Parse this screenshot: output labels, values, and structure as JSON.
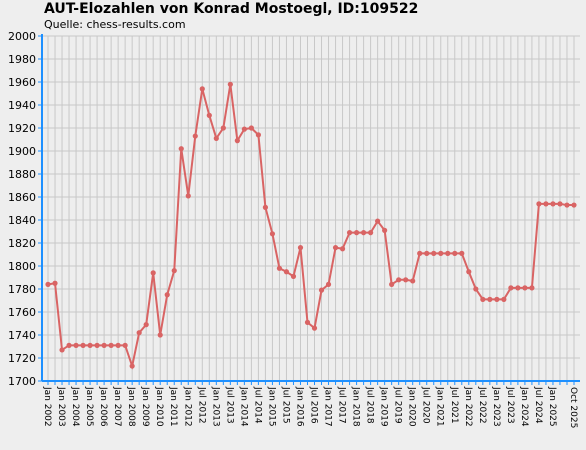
{
  "chart_data": {
    "type": "line",
    "title": "AUT-Elozahlen von Konrad Mostoegl, ID:109522",
    "subtitle": "Quelle: chess-results.com",
    "color": "#d96464",
    "grid": true,
    "ylim": [
      1700,
      2000
    ],
    "yticks": [
      1700,
      1720,
      1740,
      1760,
      1780,
      1800,
      1820,
      1840,
      1860,
      1880,
      1900,
      1920,
      1940,
      1960,
      1980,
      2000
    ],
    "categories": [
      "Jan 2002",
      null,
      "Jan 2003",
      null,
      "Jan 2004",
      null,
      "Jan 2005",
      null,
      "Jan 2006",
      null,
      "Jan 2007",
      null,
      "Jan 2008",
      null,
      "Jan 2009",
      null,
      "Jan 2010",
      null,
      "Jan 2011",
      null,
      "Jan 2012",
      null,
      "Jul 2012",
      null,
      "Jan 2013",
      null,
      "Jul 2013",
      null,
      "Jan 2014",
      null,
      "Jul 2014",
      null,
      "Jan 2015",
      null,
      "Jul 2015",
      null,
      "Jan 2016",
      null,
      "Jul 2016",
      null,
      "Jan 2017",
      null,
      "Jul 2017",
      null,
      "Jan 2018",
      null,
      "Jul 2018",
      null,
      "Jan 2019",
      null,
      "Jul 2019",
      null,
      "Jan 2020",
      null,
      "Jul 2020",
      null,
      "Jan 2021",
      null,
      "Jul 2021",
      null,
      "Jan 2022",
      null,
      "Jul 2022",
      null,
      "Jan 2023",
      null,
      "Jul 2023",
      null,
      "Jan 2024",
      null,
      "Jul 2024",
      null,
      "Jan 2025",
      null,
      null,
      "Oct 2025"
    ],
    "values": [
      1784,
      1785,
      1727,
      1731,
      1731,
      1731,
      1731,
      1731,
      1731,
      1731,
      1731,
      1731,
      1713,
      1742,
      1749,
      1794,
      1740,
      1775,
      1796,
      1902,
      1861,
      1913,
      1954,
      1931,
      1911,
      1920,
      1958,
      1909,
      1919,
      1920,
      1914,
      1851,
      1828,
      1798,
      1795,
      1791,
      1816,
      1751,
      1746,
      1779,
      1784,
      1816,
      1815,
      1829,
      1829,
      1829,
      1829,
      1839,
      1831,
      1784,
      1788,
      1788,
      1787,
      1811,
      1811,
      1811,
      1811,
      1811,
      1811,
      1811,
      1795,
      1780,
      1771,
      1771,
      1771,
      1771,
      1781,
      1781,
      1781,
      1781,
      1854,
      1854,
      1854,
      1854,
      1853,
      1853
    ]
  }
}
